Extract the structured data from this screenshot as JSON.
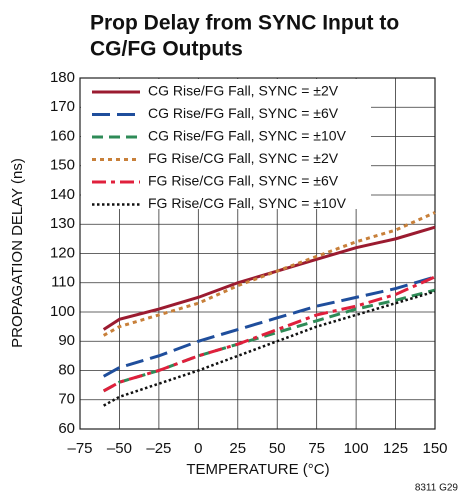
{
  "chart_data": {
    "type": "line",
    "title": [
      "Prop Delay from SYNC Input to",
      "CG/FG Outputs"
    ],
    "x_label": "TEMPERATURE (°C)",
    "y_label": "PROPAGATION DELAY (ns)",
    "footnote": "8311 G29",
    "x": [
      -60,
      -50,
      -25,
      0,
      25,
      50,
      75,
      100,
      125,
      150
    ],
    "series": [
      {
        "name": "CG Rise/FG Fall, SYNC = ±2V",
        "color": "#9b1b30",
        "dash": "solid",
        "values": [
          94,
          97.5,
          101,
          105,
          110,
          114,
          118,
          122,
          125,
          129
        ]
      },
      {
        "name": "CG Rise/FG Fall, SYNC = ±6V",
        "color": "#1f4e9c",
        "dash": "long",
        "values": [
          78,
          81,
          85,
          90,
          94,
          98,
          102,
          105,
          108,
          112
        ]
      },
      {
        "name": "CG Rise/FG Fall, SYNC = ±10V",
        "color": "#2e8b57",
        "dash": "dashed",
        "values": [
          73,
          76,
          80,
          85,
          89,
          93,
          97,
          101,
          104,
          107.5
        ]
      },
      {
        "name": "FG Rise/CG Fall, SYNC = ±2V",
        "color": "#c8803a",
        "dash": "dotted",
        "values": [
          92,
          95,
          99,
          103,
          109,
          114,
          119,
          124,
          128,
          134
        ]
      },
      {
        "name": "FG Rise/CG Fall, SYNC = ±6V",
        "color": "#e0203c",
        "dash": "dashdot",
        "values": [
          73,
          76,
          80,
          85,
          89,
          94,
          99,
          102,
          106,
          112
        ]
      },
      {
        "name": "FG Rise/CG Fall, SYNC = ±10V",
        "color": "#111111",
        "dash": "fine",
        "values": [
          68,
          71,
          75.5,
          80,
          85,
          90,
          95,
          99,
          103,
          107
        ]
      }
    ],
    "xlim": [
      -75,
      150
    ],
    "xticks": [
      {
        "value": -75,
        "label": "–75"
      },
      {
        "value": -50,
        "label": "–50"
      },
      {
        "value": -25,
        "label": "–25"
      },
      0,
      25,
      50,
      75,
      100,
      125,
      150
    ],
    "ylim": [
      60,
      180
    ],
    "yticks": [
      60,
      70,
      80,
      90,
      100,
      110,
      120,
      130,
      140,
      150,
      160,
      170,
      180
    ],
    "grid": true,
    "legend": "upper left"
  }
}
